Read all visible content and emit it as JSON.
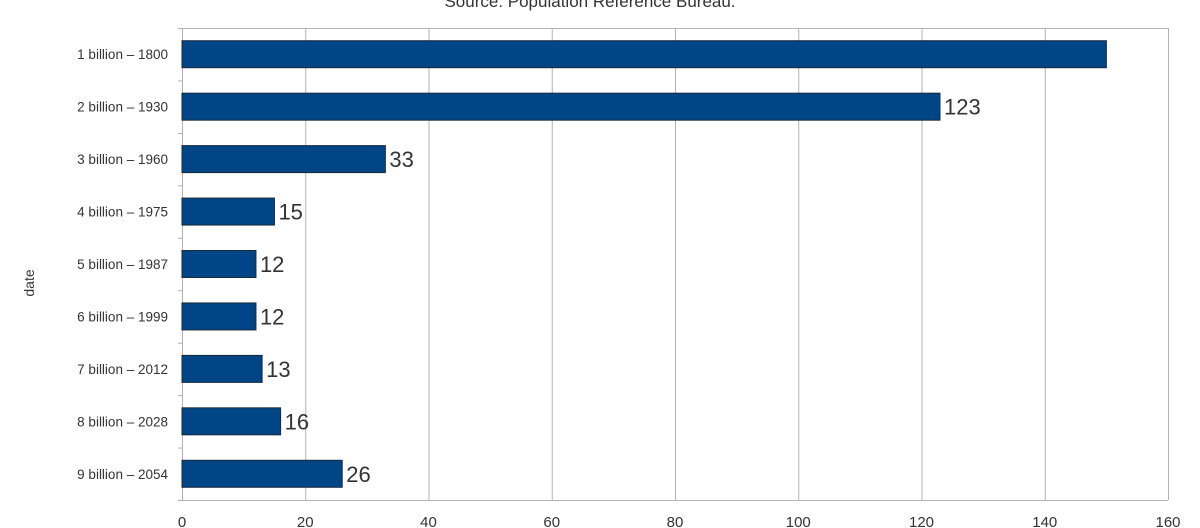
{
  "chart_data": {
    "type": "bar",
    "orientation": "horizontal",
    "subtitle": "Source: Population Reference Bureau.",
    "xlabel": "",
    "ylabel": "date",
    "categories": [
      "1 billion – 1800",
      "2 billion – 1930",
      "3 billion – 1960",
      "4 billion – 1975",
      "5 billion – 1987",
      "6 billion – 1999",
      "7 billion – 2012",
      "8 billion – 2028",
      "9 billion – 2054"
    ],
    "values": [
      150,
      123,
      33,
      15,
      12,
      12,
      13,
      16,
      26
    ],
    "data_labels": [
      "",
      "123",
      "33",
      "15",
      "12",
      "12",
      "13",
      "16",
      "26"
    ],
    "xlim": [
      0,
      160
    ],
    "xticks": [
      0,
      20,
      40,
      60,
      80,
      100,
      120,
      140,
      160
    ],
    "grid": "vertical",
    "legend": "none",
    "colors": {
      "bar_fill": "#004586",
      "bar_stroke": "#1a2a3a",
      "grid": "#b3b3b3",
      "axis": "#b3b3b3",
      "text": "#333333"
    }
  }
}
